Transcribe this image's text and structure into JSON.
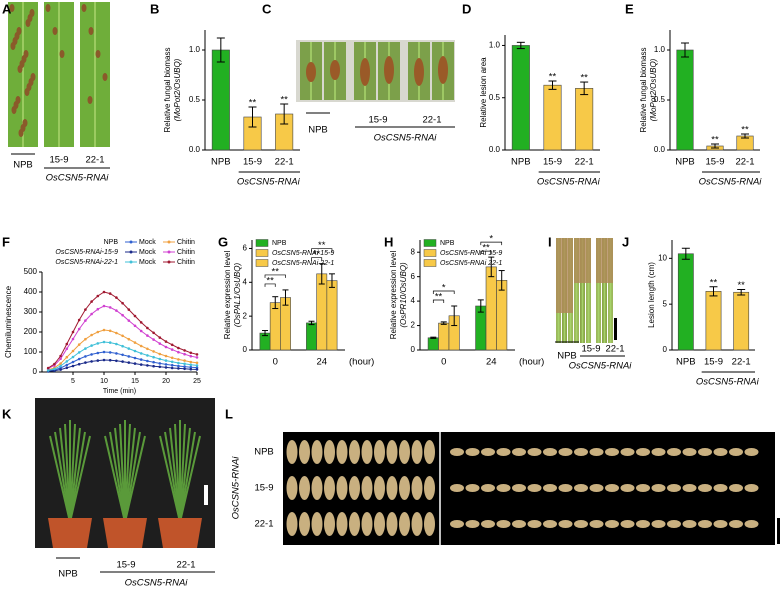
{
  "chart_data": [
    {
      "type": "bar",
      "panel": "B",
      "ylabel": [
        "Relative fungal biomass",
        "(MoPot2/OsUBQ)"
      ],
      "categories": [
        "NPB",
        "15-9",
        "22-1"
      ],
      "values": [
        1.0,
        0.33,
        0.36
      ],
      "errors": [
        0.12,
        0.1,
        0.1
      ],
      "colors": [
        "#22b022",
        "#f7c948",
        "#f7c948"
      ],
      "significance": [
        null,
        "**",
        "**"
      ],
      "group_label": "OsCSN5-RNAi",
      "ylim": [
        0,
        1.2
      ],
      "yticks": [
        {
          "value": 0,
          "label": "0.0"
        },
        {
          "value": 0.5,
          "label": "0.5"
        },
        {
          "value": 1,
          "label": "1.0"
        }
      ]
    },
    {
      "type": "bar",
      "panel": "D",
      "ylabel": [
        "Relative lesion area"
      ],
      "categories": [
        "NPB",
        "15-9",
        "22-1"
      ],
      "values": [
        1.0,
        0.62,
        0.59
      ],
      "errors": [
        0.03,
        0.04,
        0.06
      ],
      "colors": [
        "#22b022",
        "#f7c948",
        "#f7c948"
      ],
      "significance": [
        null,
        "**",
        "**"
      ],
      "group_label": "OsCSN5-RNAi",
      "ylim": [
        0,
        1.1
      ],
      "yticks": [
        {
          "value": 0,
          "label": "0.0"
        },
        {
          "value": 0.5,
          "label": "0.5"
        },
        {
          "value": 1,
          "label": "1.0"
        }
      ]
    },
    {
      "type": "bar",
      "panel": "E",
      "ylabel": [
        "Relative fungal biomass",
        "(MoPot2/OsUBQ)"
      ],
      "categories": [
        "NPB",
        "15-9",
        "22-1"
      ],
      "values": [
        1.0,
        0.04,
        0.14
      ],
      "errors": [
        0.07,
        0.02,
        0.02
      ],
      "colors": [
        "#22b022",
        "#f7c948",
        "#f7c948"
      ],
      "significance": [
        null,
        "**",
        "**"
      ],
      "group_label": "OsCSN5-RNAi",
      "ylim": [
        0,
        1.2
      ],
      "yticks": [
        {
          "value": 0,
          "label": "0.0"
        },
        {
          "value": 0.5,
          "label": "0.5"
        },
        {
          "value": 1,
          "label": "1.0"
        }
      ]
    },
    {
      "type": "line",
      "panel": "F",
      "ylabel": [
        "Chemiluminescence"
      ],
      "xlabel": "Time (min)",
      "x": [
        1,
        2,
        3,
        4,
        5,
        6,
        7,
        8,
        9,
        10,
        11,
        12,
        13,
        14,
        15,
        16,
        17,
        18,
        19,
        20,
        21,
        22,
        23,
        24,
        25
      ],
      "xlim": [
        0,
        25
      ],
      "ylim": [
        0,
        500
      ],
      "xticks": [
        5,
        10,
        15,
        20,
        25
      ],
      "yticks": [
        0,
        100,
        200,
        300,
        400,
        500
      ],
      "legend_rows": [
        "NPB",
        "OsCSN5-RNAi-15-9",
        "OsCSN5-RNAi-22-1"
      ],
      "series": [
        {
          "name": "Mock",
          "color": "#3060d0",
          "values": [
            5,
            10,
            20,
            35,
            50,
            65,
            78,
            88,
            95,
            100,
            98,
            93,
            86,
            78,
            70,
            62,
            55,
            49,
            43,
            38,
            34,
            30,
            27,
            24,
            22
          ]
        },
        {
          "name": "Chitin",
          "color": "#f0a040",
          "values": [
            11,
            21,
            42,
            74,
            105,
            137,
            164,
            185,
            200,
            210,
            206,
            195,
            181,
            164,
            147,
            130,
            116,
            103,
            90,
            80,
            71,
            63,
            57,
            50,
            46
          ]
        },
        {
          "name": "Mock",
          "color": "#1a2a8a",
          "values": [
            3,
            6,
            12,
            21,
            30,
            39,
            47,
            53,
            57,
            60,
            59,
            56,
            52,
            47,
            42,
            37,
            33,
            29,
            26,
            23,
            20,
            18,
            16,
            14,
            13
          ]
        },
        {
          "name": "Chitin",
          "color": "#d040d0",
          "values": [
            17,
            33,
            66,
            116,
            165,
            215,
            257,
            290,
            314,
            330,
            323,
            307,
            284,
            257,
            231,
            205,
            182,
            162,
            142,
            125,
            112,
            99,
            89,
            79,
            73
          ]
        },
        {
          "name": "Mock",
          "color": "#40c0d8",
          "values": [
            8,
            15,
            30,
            53,
            75,
            98,
            117,
            132,
            143,
            150,
            147,
            140,
            129,
            117,
            105,
            93,
            83,
            74,
            65,
            57,
            51,
            45,
            41,
            36,
            33
          ]
        },
        {
          "name": "Chitin",
          "color": "#a01830",
          "values": [
            20,
            40,
            80,
            140,
            200,
            260,
            312,
            352,
            380,
            400,
            392,
            372,
            344,
            312,
            280,
            248,
            220,
            196,
            172,
            152,
            136,
            120,
            108,
            96,
            88
          ]
        }
      ]
    },
    {
      "type": "grouped_bar",
      "panel": "G",
      "ylabel": [
        "Relative expression level",
        "(OsPAL1/OsUBQ)"
      ],
      "xlabel": "(hour)",
      "categories": [
        "0",
        "24"
      ],
      "ylim": [
        0,
        6.5
      ],
      "yticks": [
        0,
        2,
        4,
        6
      ],
      "series": [
        {
          "name": "NPB",
          "color": "#22b022",
          "values": [
            1.0,
            1.6
          ],
          "errors": [
            0.15,
            0.1
          ]
        },
        {
          "name": "OsCSN5-RNAi 15-9",
          "color": "#f7c948",
          "values": [
            2.8,
            4.5
          ],
          "errors": [
            0.35,
            0.6
          ]
        },
        {
          "name": "OsCSN5-RNAi 22-1",
          "color": "#f7c948",
          "values": [
            3.1,
            4.1
          ],
          "errors": [
            0.45,
            0.4
          ]
        }
      ],
      "significance": [
        [
          "**",
          "**"
        ],
        [
          "**",
          "**"
        ]
      ]
    },
    {
      "type": "grouped_bar",
      "panel": "H",
      "ylabel": [
        "Relative expression level",
        "(OsPR10/OsUBQ)"
      ],
      "xlabel": "(hour)",
      "categories": [
        "0",
        "24"
      ],
      "ylim": [
        0,
        9
      ],
      "yticks": [
        0,
        2,
        4,
        6,
        8
      ],
      "series": [
        {
          "name": "NPB",
          "color": "#22b022",
          "values": [
            1.0,
            3.6
          ],
          "errors": [
            0.05,
            0.5
          ]
        },
        {
          "name": "OsCSN5-RNAi 15-9",
          "color": "#f7c948",
          "values": [
            2.2,
            6.8
          ],
          "errors": [
            0.1,
            0.8
          ]
        },
        {
          "name": "OsCSN5-RNAi 22-1",
          "color": "#f7c948",
          "values": [
            2.8,
            5.7
          ],
          "errors": [
            0.8,
            0.8
          ]
        }
      ],
      "significance": [
        [
          "**",
          "*"
        ],
        [
          "**",
          "*"
        ]
      ]
    },
    {
      "type": "bar",
      "panel": "J",
      "ylabel": [
        "Lesion length (cm)"
      ],
      "categories": [
        "NPB",
        "15-9",
        "22-1"
      ],
      "values": [
        10.5,
        6.4,
        6.3
      ],
      "errors": [
        0.6,
        0.5,
        0.3
      ],
      "colors": [
        "#22b022",
        "#f7c948",
        "#f7c948"
      ],
      "significance": [
        null,
        "**",
        "**"
      ],
      "group_label": "OsCSN5-RNAi",
      "ylim": [
        0,
        12
      ],
      "yticks": [
        0,
        5,
        10
      ]
    }
  ],
  "photos": [
    {
      "panel": "A",
      "labels": [
        "NPB",
        "15-9",
        "22-1"
      ],
      "group_label": "OsCSN5-RNAi"
    },
    {
      "panel": "C",
      "labels": [
        "NPB",
        "15-9",
        "22-1"
      ],
      "group_label": "OsCSN5-RNAi"
    },
    {
      "panel": "I",
      "labels": [
        "NPB",
        "15-9",
        "22-1"
      ],
      "group_label": "OsCSN5-RNAi"
    },
    {
      "panel": "K",
      "labels": [
        "NPB",
        "15-9",
        "22-1"
      ],
      "group_label": "OsCSN5-RNAi"
    },
    {
      "panel": "L",
      "labels": [
        "NPB",
        "15-9",
        "22-1"
      ],
      "group_label": "OsCSN5-RNAi"
    }
  ]
}
